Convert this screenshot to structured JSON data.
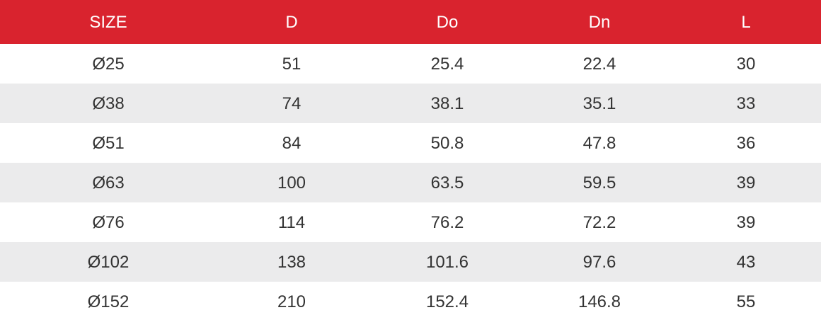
{
  "table": {
    "columns": [
      "SIZE",
      "D",
      "Do",
      "Dn",
      "L"
    ],
    "rows": [
      [
        "Ø25",
        "51",
        "25.4",
        "22.4",
        "30"
      ],
      [
        "Ø38",
        "74",
        "38.1",
        "35.1",
        "33"
      ],
      [
        "Ø51",
        "84",
        "50.8",
        "47.8",
        "36"
      ],
      [
        "Ø63",
        "100",
        "63.5",
        "59.5",
        "39"
      ],
      [
        "Ø76",
        "114",
        "76.2",
        "72.2",
        "39"
      ],
      [
        "Ø102",
        "138",
        "101.6",
        "97.6",
        "43"
      ],
      [
        "Ø152",
        "210",
        "152.4",
        "146.8",
        "55"
      ]
    ]
  },
  "colors": {
    "header_bg": "#d9232e",
    "header_text": "#ffffff",
    "stripe_bg": "#ebebec",
    "body_text": "#333333"
  }
}
